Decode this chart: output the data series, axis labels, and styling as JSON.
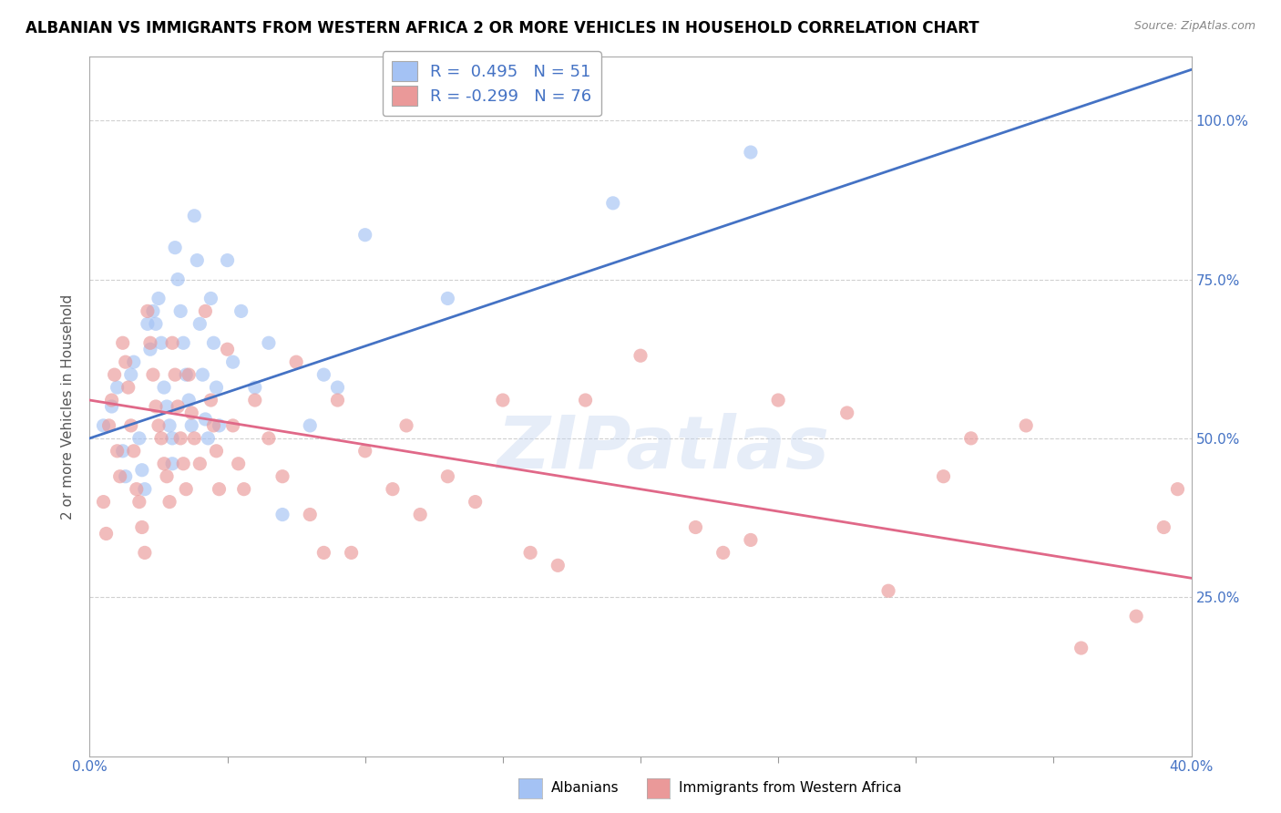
{
  "title": "ALBANIAN VS IMMIGRANTS FROM WESTERN AFRICA 2 OR MORE VEHICLES IN HOUSEHOLD CORRELATION CHART",
  "source": "Source: ZipAtlas.com",
  "watermark": "ZIPatlas",
  "legend_blue_r": "R =  0.495",
  "legend_blue_n": "N = 51",
  "legend_pink_r": "R = -0.299",
  "legend_pink_n": "N = 76",
  "blue_color": "#a4c2f4",
  "pink_color": "#ea9999",
  "blue_line_color": "#4472c4",
  "pink_line_color": "#e06888",
  "blue_scatter": [
    [
      0.005,
      0.52
    ],
    [
      0.008,
      0.55
    ],
    [
      0.01,
      0.58
    ],
    [
      0.012,
      0.48
    ],
    [
      0.013,
      0.44
    ],
    [
      0.015,
      0.6
    ],
    [
      0.016,
      0.62
    ],
    [
      0.018,
      0.5
    ],
    [
      0.019,
      0.45
    ],
    [
      0.02,
      0.42
    ],
    [
      0.021,
      0.68
    ],
    [
      0.022,
      0.64
    ],
    [
      0.023,
      0.7
    ],
    [
      0.024,
      0.68
    ],
    [
      0.025,
      0.72
    ],
    [
      0.026,
      0.65
    ],
    [
      0.027,
      0.58
    ],
    [
      0.028,
      0.55
    ],
    [
      0.029,
      0.52
    ],
    [
      0.03,
      0.5
    ],
    [
      0.03,
      0.46
    ],
    [
      0.031,
      0.8
    ],
    [
      0.032,
      0.75
    ],
    [
      0.033,
      0.7
    ],
    [
      0.034,
      0.65
    ],
    [
      0.035,
      0.6
    ],
    [
      0.036,
      0.56
    ],
    [
      0.037,
      0.52
    ],
    [
      0.038,
      0.85
    ],
    [
      0.039,
      0.78
    ],
    [
      0.04,
      0.68
    ],
    [
      0.041,
      0.6
    ],
    [
      0.042,
      0.53
    ],
    [
      0.043,
      0.5
    ],
    [
      0.044,
      0.72
    ],
    [
      0.045,
      0.65
    ],
    [
      0.046,
      0.58
    ],
    [
      0.047,
      0.52
    ],
    [
      0.05,
      0.78
    ],
    [
      0.052,
      0.62
    ],
    [
      0.055,
      0.7
    ],
    [
      0.06,
      0.58
    ],
    [
      0.065,
      0.65
    ],
    [
      0.07,
      0.38
    ],
    [
      0.08,
      0.52
    ],
    [
      0.085,
      0.6
    ],
    [
      0.09,
      0.58
    ],
    [
      0.1,
      0.82
    ],
    [
      0.13,
      0.72
    ],
    [
      0.19,
      0.87
    ],
    [
      0.24,
      0.95
    ]
  ],
  "pink_scatter": [
    [
      0.005,
      0.4
    ],
    [
      0.006,
      0.35
    ],
    [
      0.007,
      0.52
    ],
    [
      0.008,
      0.56
    ],
    [
      0.009,
      0.6
    ],
    [
      0.01,
      0.48
    ],
    [
      0.011,
      0.44
    ],
    [
      0.012,
      0.65
    ],
    [
      0.013,
      0.62
    ],
    [
      0.014,
      0.58
    ],
    [
      0.015,
      0.52
    ],
    [
      0.016,
      0.48
    ],
    [
      0.017,
      0.42
    ],
    [
      0.018,
      0.4
    ],
    [
      0.019,
      0.36
    ],
    [
      0.02,
      0.32
    ],
    [
      0.021,
      0.7
    ],
    [
      0.022,
      0.65
    ],
    [
      0.023,
      0.6
    ],
    [
      0.024,
      0.55
    ],
    [
      0.025,
      0.52
    ],
    [
      0.026,
      0.5
    ],
    [
      0.027,
      0.46
    ],
    [
      0.028,
      0.44
    ],
    [
      0.029,
      0.4
    ],
    [
      0.03,
      0.65
    ],
    [
      0.031,
      0.6
    ],
    [
      0.032,
      0.55
    ],
    [
      0.033,
      0.5
    ],
    [
      0.034,
      0.46
    ],
    [
      0.035,
      0.42
    ],
    [
      0.036,
      0.6
    ],
    [
      0.037,
      0.54
    ],
    [
      0.038,
      0.5
    ],
    [
      0.04,
      0.46
    ],
    [
      0.042,
      0.7
    ],
    [
      0.044,
      0.56
    ],
    [
      0.045,
      0.52
    ],
    [
      0.046,
      0.48
    ],
    [
      0.047,
      0.42
    ],
    [
      0.05,
      0.64
    ],
    [
      0.052,
      0.52
    ],
    [
      0.054,
      0.46
    ],
    [
      0.056,
      0.42
    ],
    [
      0.06,
      0.56
    ],
    [
      0.065,
      0.5
    ],
    [
      0.07,
      0.44
    ],
    [
      0.075,
      0.62
    ],
    [
      0.08,
      0.38
    ],
    [
      0.085,
      0.32
    ],
    [
      0.09,
      0.56
    ],
    [
      0.095,
      0.32
    ],
    [
      0.1,
      0.48
    ],
    [
      0.11,
      0.42
    ],
    [
      0.115,
      0.52
    ],
    [
      0.12,
      0.38
    ],
    [
      0.13,
      0.44
    ],
    [
      0.14,
      0.4
    ],
    [
      0.15,
      0.56
    ],
    [
      0.16,
      0.32
    ],
    [
      0.17,
      0.3
    ],
    [
      0.18,
      0.56
    ],
    [
      0.2,
      0.63
    ],
    [
      0.22,
      0.36
    ],
    [
      0.23,
      0.32
    ],
    [
      0.24,
      0.34
    ],
    [
      0.25,
      0.56
    ],
    [
      0.275,
      0.54
    ],
    [
      0.29,
      0.26
    ],
    [
      0.31,
      0.44
    ],
    [
      0.32,
      0.5
    ],
    [
      0.34,
      0.52
    ],
    [
      0.36,
      0.17
    ],
    [
      0.38,
      0.22
    ],
    [
      0.39,
      0.36
    ],
    [
      0.395,
      0.42
    ]
  ],
  "xmin": 0.0,
  "xmax": 0.4,
  "ymin": 0.0,
  "ymax": 1.1,
  "yticks": [
    0.25,
    0.5,
    0.75,
    1.0
  ],
  "ytick_labels": [
    "25.0%",
    "50.0%",
    "75.0%",
    "100.0%"
  ],
  "blue_line_x": [
    0.0,
    0.4
  ],
  "blue_line_y": [
    0.5,
    1.08
  ],
  "pink_line_x": [
    0.0,
    0.4
  ],
  "pink_line_y": [
    0.56,
    0.28
  ],
  "background_color": "#ffffff",
  "grid_color": "#d0d0d0",
  "title_fontsize": 12,
  "axis_label_fontsize": 11,
  "tick_fontsize": 11,
  "legend_fontsize": 13,
  "dot_size": 120,
  "dot_alpha": 0.65
}
